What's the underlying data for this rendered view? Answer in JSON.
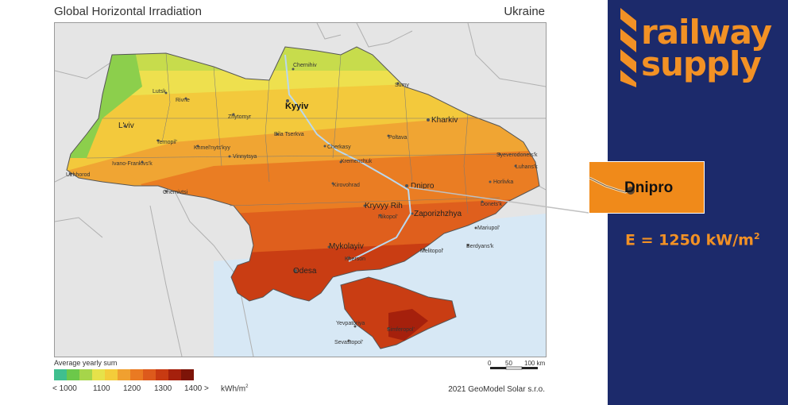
{
  "map": {
    "title": "Global Horizontal Irradiation",
    "country": "Ukraine",
    "cities": [
      {
        "name": "Chernihiv"
      },
      {
        "name": "Sumy"
      },
      {
        "name": "Kyyiv"
      },
      {
        "name": "Lutsk"
      },
      {
        "name": "Rivne"
      },
      {
        "name": "Zhytomyr"
      },
      {
        "name": "Kharkiv"
      },
      {
        "name": "L'viv"
      },
      {
        "name": "Bila Tserkva"
      },
      {
        "name": "Poltava"
      },
      {
        "name": "Ternopil'"
      },
      {
        "name": "Khmel'nyts'kyy"
      },
      {
        "name": "Cherkasy"
      },
      {
        "name": "Syeverodonets'k"
      },
      {
        "name": "Vinnytsya"
      },
      {
        "name": "Luhans'k"
      },
      {
        "name": "Kremenchuk"
      },
      {
        "name": "Ivano-Frankivs'k"
      },
      {
        "name": "Uzhhorod"
      },
      {
        "name": "Dnipro"
      },
      {
        "name": "Horlivka"
      },
      {
        "name": "Kirovohrad"
      },
      {
        "name": "Chernivtsi"
      },
      {
        "name": "Donets'k"
      },
      {
        "name": "Kryvyy Rih"
      },
      {
        "name": "Zaporizhzhya"
      },
      {
        "name": "Nikopol'"
      },
      {
        "name": "Mariupol'"
      },
      {
        "name": "Mykolayiv"
      },
      {
        "name": "Melitopol'"
      },
      {
        "name": "Kherson"
      },
      {
        "name": "Berdyans'k"
      },
      {
        "name": "Odesa"
      },
      {
        "name": "Yevpatoriya"
      },
      {
        "name": "Simferopol'"
      },
      {
        "name": "Sevastopol'"
      }
    ],
    "legend": {
      "title": "Average yearly sum",
      "colors": [
        "#3fbf8f",
        "#6cc84a",
        "#a6d54a",
        "#e6e24a",
        "#f4cc3a",
        "#f0a030",
        "#ea7a22",
        "#dd5a1c",
        "#c83a12",
        "#a5200c",
        "#7d1408"
      ],
      "labels": [
        "< 1000",
        "1100",
        "1200",
        "1300",
        "1400 >"
      ],
      "unit": "kWh/m",
      "unit_sup": "2"
    },
    "scale": {
      "labels": [
        "0",
        "50",
        "100 km"
      ]
    },
    "copyright": "2021 GeoModel Solar s.r.o."
  },
  "brand": {
    "logo_line1": "railway",
    "logo_line2": "supply",
    "zoom_label": "Dnipro",
    "formula": "E = 1250 kW/m",
    "formula_sup": "2",
    "accent": "#f29125",
    "panel_color": "#1c2a6b"
  }
}
